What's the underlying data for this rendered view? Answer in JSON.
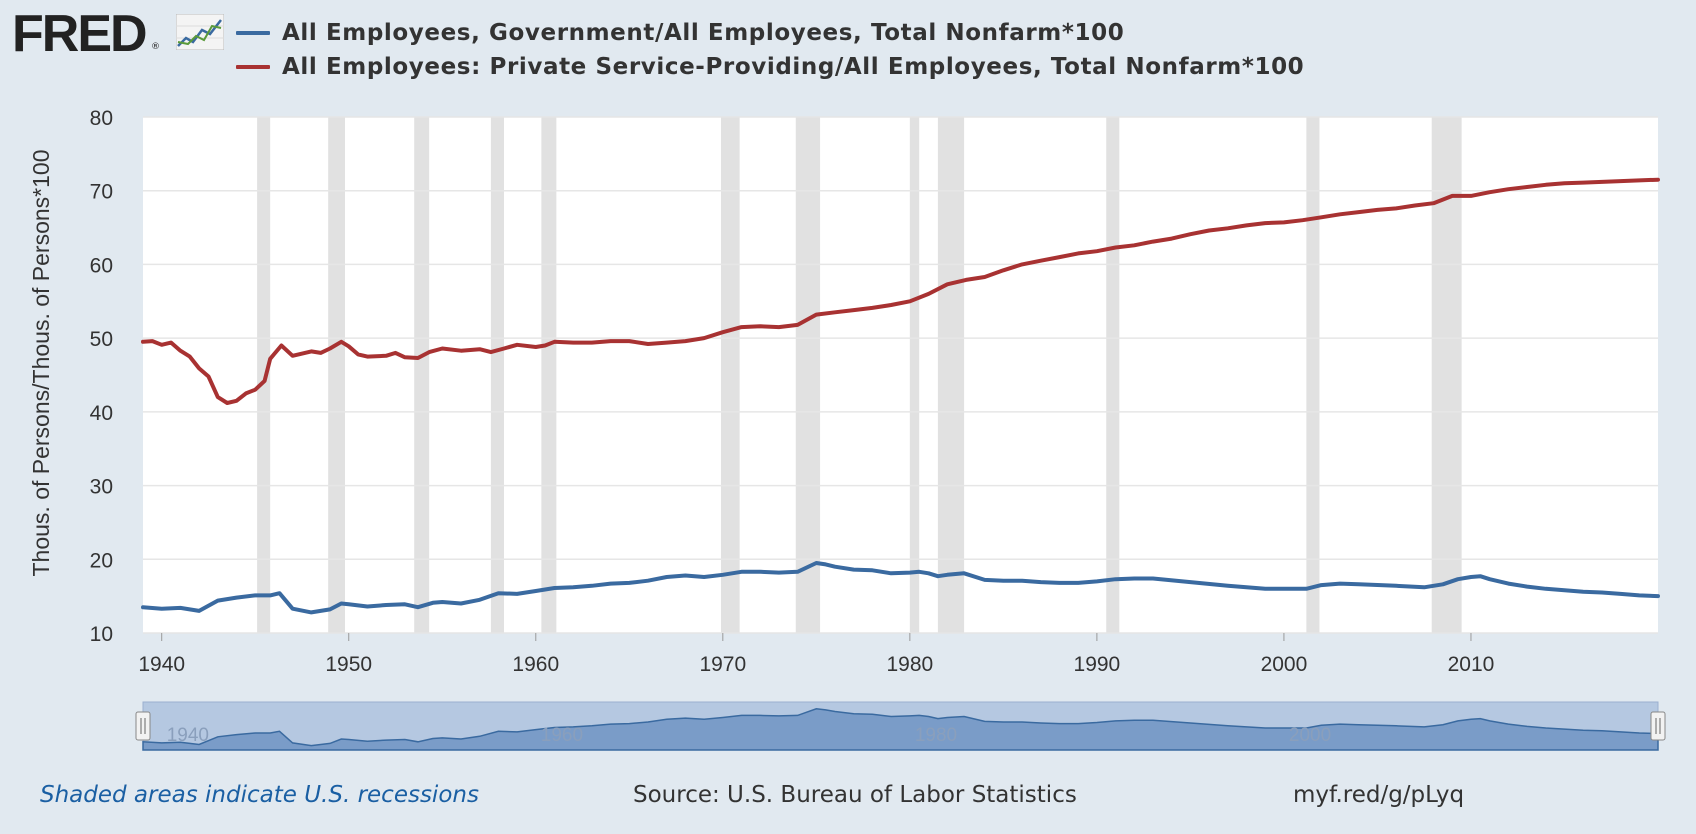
{
  "header": {
    "logo_text": "FRED",
    "logo_reg": "®",
    "logo_icon": "line-graph-icon"
  },
  "legend": [
    {
      "label": "All Employees, Government/All Employees, Total Nonfarm*100",
      "color": "#3a6aa0"
    },
    {
      "label": "All Employees: Private Service-Providing/All Employees, Total Nonfarm*100",
      "color": "#a83232"
    }
  ],
  "footer": {
    "note": "Shaded areas indicate U.S. recessions",
    "source": "Source: U.S. Bureau of Labor Statistics",
    "link": "myf.red/g/pLyq"
  },
  "navigator": {
    "tick_labels": [
      "1940",
      "1960",
      "1980",
      "2000"
    ],
    "range_start": 1939.0,
    "range_end": 2020.0
  },
  "chart_data": {
    "type": "line",
    "ylabel": "Thous. of Persons/Thous. of Persons*100",
    "xlabel": "",
    "xlim": [
      1939.0,
      2020.0
    ],
    "ylim": [
      10,
      80
    ],
    "yticks": [
      10,
      20,
      30,
      40,
      50,
      60,
      70,
      80
    ],
    "xticks": [
      1940,
      1950,
      1960,
      1970,
      1980,
      1990,
      2000,
      2010
    ],
    "grid": true,
    "recessions": [
      [
        1945.1,
        1945.8
      ],
      [
        1948.9,
        1949.8
      ],
      [
        1953.5,
        1954.3
      ],
      [
        1957.6,
        1958.3
      ],
      [
        1960.3,
        1961.1
      ],
      [
        1969.9,
        1970.9
      ],
      [
        1973.9,
        1975.2
      ],
      [
        1980.0,
        1980.5
      ],
      [
        1981.5,
        1982.9
      ],
      [
        1990.5,
        1991.2
      ],
      [
        2001.2,
        2001.9
      ],
      [
        2007.9,
        2009.5
      ]
    ],
    "series": [
      {
        "name": "All Employees, Government/All Employees, Total Nonfarm*100",
        "color": "#3a6aa0",
        "x": [
          1939.0,
          1940.0,
          1941.0,
          1942.0,
          1943.0,
          1944.0,
          1945.0,
          1945.8,
          1946.3,
          1947.0,
          1948.0,
          1949.0,
          1949.6,
          1950.0,
          1951.0,
          1952.0,
          1953.0,
          1953.7,
          1954.5,
          1955.0,
          1956.0,
          1957.0,
          1958.0,
          1959.0,
          1960.0,
          1961.0,
          1962.0,
          1963.0,
          1964.0,
          1965.0,
          1966.0,
          1967.0,
          1968.0,
          1969.0,
          1970.0,
          1971.0,
          1972.0,
          1973.0,
          1974.0,
          1975.0,
          1975.5,
          1976.0,
          1977.0,
          1978.0,
          1979.0,
          1980.0,
          1980.5,
          1981.0,
          1981.5,
          1982.0,
          1982.9,
          1984.0,
          1985.0,
          1986.0,
          1987.0,
          1988.0,
          1989.0,
          1990.0,
          1991.0,
          1992.0,
          1993.0,
          1995.0,
          1997.0,
          1999.0,
          2000.5,
          2001.2,
          2002.0,
          2003.0,
          2004.0,
          2006.0,
          2007.5,
          2008.5,
          2009.3,
          2010.0,
          2010.5,
          2011.0,
          2012.0,
          2013.0,
          2014.0,
          2015.0,
          2016.0,
          2017.0,
          2018.0,
          2019.0,
          2020.0
        ],
        "values": [
          13.5,
          13.3,
          13.4,
          13.0,
          14.4,
          14.8,
          15.1,
          15.1,
          15.4,
          13.3,
          12.8,
          13.2,
          14.0,
          13.9,
          13.6,
          13.8,
          13.9,
          13.5,
          14.1,
          14.2,
          14.0,
          14.5,
          15.4,
          15.3,
          15.7,
          16.1,
          16.2,
          16.4,
          16.7,
          16.8,
          17.1,
          17.6,
          17.8,
          17.6,
          17.9,
          18.3,
          18.3,
          18.2,
          18.3,
          19.5,
          19.3,
          19.0,
          18.6,
          18.5,
          18.1,
          18.2,
          18.3,
          18.1,
          17.7,
          17.9,
          18.1,
          17.2,
          17.1,
          17.1,
          16.9,
          16.8,
          16.8,
          17.0,
          17.3,
          17.4,
          17.4,
          16.9,
          16.4,
          16.0,
          16.0,
          16.0,
          16.5,
          16.7,
          16.6,
          16.4,
          16.2,
          16.6,
          17.3,
          17.6,
          17.7,
          17.3,
          16.7,
          16.3,
          16.0,
          15.8,
          15.6,
          15.5,
          15.3,
          15.1,
          15.0
        ]
      },
      {
        "name": "All Employees: Private Service-Providing/All Employees, Total Nonfarm*100",
        "color": "#a83232",
        "x": [
          1939.0,
          1939.5,
          1940.0,
          1940.5,
          1941.0,
          1941.5,
          1942.0,
          1942.5,
          1943.0,
          1943.5,
          1944.0,
          1944.5,
          1945.0,
          1945.5,
          1945.8,
          1946.0,
          1946.4,
          1947.0,
          1948.0,
          1948.5,
          1949.0,
          1949.6,
          1950.0,
          1950.5,
          1951.0,
          1952.0,
          1952.5,
          1953.0,
          1953.7,
          1954.3,
          1955.0,
          1956.0,
          1957.0,
          1957.6,
          1958.3,
          1959.0,
          1960.0,
          1960.5,
          1961.0,
          1962.0,
          1963.0,
          1964.0,
          1965.0,
          1966.0,
          1967.0,
          1968.0,
          1969.0,
          1970.0,
          1971.0,
          1972.0,
          1973.0,
          1974.0,
          1975.0,
          1976.0,
          1977.0,
          1978.0,
          1979.0,
          1980.0,
          1981.0,
          1982.0,
          1983.0,
          1984.0,
          1985.0,
          1986.0,
          1987.0,
          1988.0,
          1989.0,
          1990.0,
          1991.0,
          1992.0,
          1993.0,
          1994.0,
          1995.0,
          1996.0,
          1997.0,
          1998.0,
          1999.0,
          2000.0,
          2001.0,
          2002.0,
          2003.0,
          2004.0,
          2005.0,
          2006.0,
          2007.0,
          2008.0,
          2009.0,
          2010.0,
          2011.0,
          2012.0,
          2013.0,
          2014.0,
          2015.0,
          2016.0,
          2017.0,
          2018.0,
          2019.0,
          2020.0
        ],
        "values": [
          49.5,
          49.6,
          49.1,
          49.4,
          48.3,
          47.5,
          45.9,
          44.8,
          42.0,
          41.2,
          41.5,
          42.5,
          43.0,
          44.2,
          47.2,
          47.8,
          49.0,
          47.6,
          48.2,
          48.0,
          48.6,
          49.5,
          48.9,
          47.8,
          47.5,
          47.6,
          48.0,
          47.4,
          47.3,
          48.1,
          48.6,
          48.3,
          48.5,
          48.1,
          48.6,
          49.1,
          48.8,
          49.0,
          49.5,
          49.4,
          49.4,
          49.6,
          49.6,
          49.2,
          49.4,
          49.6,
          50.0,
          50.8,
          51.5,
          51.6,
          51.5,
          51.8,
          53.2,
          53.5,
          53.8,
          54.1,
          54.5,
          55.0,
          56.0,
          57.3,
          57.9,
          58.3,
          59.2,
          60.0,
          60.5,
          61.0,
          61.5,
          61.8,
          62.3,
          62.6,
          63.1,
          63.5,
          64.1,
          64.6,
          64.9,
          65.3,
          65.6,
          65.7,
          66.0,
          66.4,
          66.8,
          67.1,
          67.4,
          67.6,
          68.0,
          68.3,
          69.3,
          69.3,
          69.8,
          70.2,
          70.5,
          70.8,
          71.0,
          71.1,
          71.2,
          71.3,
          71.4,
          71.5
        ]
      }
    ]
  }
}
